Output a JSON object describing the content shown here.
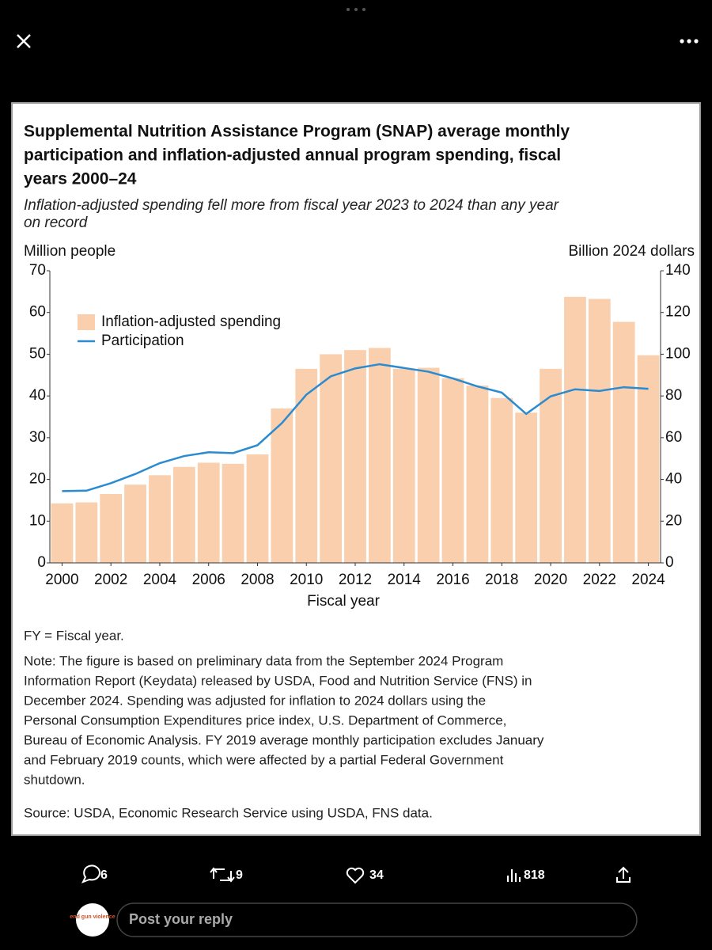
{
  "chart_data": {
    "type": "bar",
    "title": [
      "Supplemental Nutrition Assistance Program (SNAP) average monthly",
      "participation and inflation-adjusted annual program spending, fiscal",
      "years 2000–24"
    ],
    "subtitle": [
      "Inflation-adjusted spending fell more from fiscal year 2023 to 2024 than any year",
      "on record"
    ],
    "y_label": "Million people",
    "y2_label": "Billion 2024 dollars",
    "x_label": "Fiscal year",
    "x": [
      2000,
      2001,
      2002,
      2003,
      2004,
      2005,
      2006,
      2007,
      2008,
      2009,
      2010,
      2011,
      2012,
      2013,
      2014,
      2015,
      2016,
      2017,
      2018,
      2019,
      2020,
      2021,
      2022,
      2023,
      2024
    ],
    "xlim": [
      1999.5,
      2024.5
    ],
    "xticks": [
      2000,
      2002,
      2004,
      2006,
      2008,
      2010,
      2012,
      2014,
      2016,
      2018,
      2020,
      2022,
      2024
    ],
    "ylim": [
      0,
      70
    ],
    "yticks": [
      0,
      10,
      20,
      30,
      40,
      50,
      60,
      70
    ],
    "y2lim": [
      0,
      140
    ],
    "y2ticks": [
      0,
      20,
      40,
      60,
      80,
      100,
      120,
      140
    ],
    "series": [
      {
        "name": "Inflation-adjusted spending",
        "type": "bar",
        "axis": "y2",
        "color": "#f9cfae",
        "values": [
          28.5,
          29,
          33,
          37.5,
          42,
          46,
          48,
          47.5,
          52,
          74,
          93,
          100,
          102,
          103,
          93,
          93.5,
          88.5,
          85,
          79,
          72,
          93,
          127.5,
          126.5,
          115.5,
          99.5
        ]
      },
      {
        "name": "Participation",
        "type": "line",
        "axis": "y",
        "color": "#2a8bd0",
        "values": [
          17.2,
          17.3,
          19.1,
          21.3,
          23.9,
          25.6,
          26.5,
          26.3,
          28.2,
          33.5,
          40.3,
          44.7,
          46.6,
          47.6,
          46.7,
          45.8,
          44.2,
          42.3,
          40.8,
          35.7,
          39.9,
          41.6,
          41.2,
          42.1,
          41.7
        ]
      }
    ],
    "legend": "upper left",
    "footnote": "FY = Fiscal year.",
    "note": [
      "Note: The figure is based on preliminary data from the September 2024 Program",
      "Information Report (Keydata) released by USDA, Food and Nutrition Service (FNS) in",
      "December 2024. Spending was adjusted for inflation to 2024 dollars using the",
      "Personal Consumption Expenditures price index, U.S. Department of Commerce,",
      "Bureau of Economic Analysis. FY 2019 average monthly participation excludes January",
      "and February 2019 counts, which were affected by a partial Federal Government",
      "shutdown."
    ],
    "source": "Source: USDA, Economic Research Service using USDA, FNS data."
  },
  "post": {
    "replies": "6",
    "reposts": "9",
    "likes": "34",
    "views": "818",
    "reply_placeholder": "Post your reply",
    "avatar": "end gun violence"
  }
}
